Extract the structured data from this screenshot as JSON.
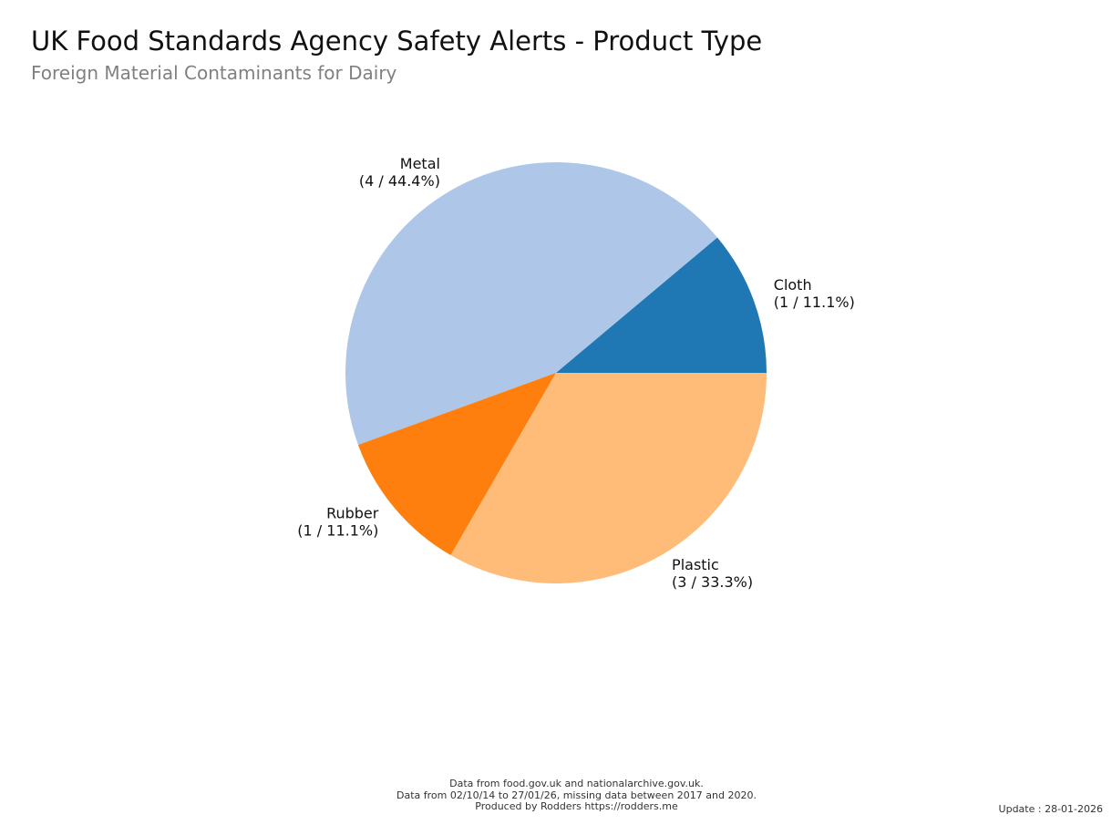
{
  "header": {
    "title": "UK Food Standards Agency Safety Alerts - Product Type",
    "subtitle": "Foreign Material Contaminants for Dairy"
  },
  "chart_data": {
    "type": "pie",
    "title": "UK Food Standards Agency Safety Alerts - Product Type",
    "subtitle": "Foreign Material Contaminants for Dairy",
    "slices": [
      {
        "label": "Cloth",
        "value": 1,
        "percent": 11.1,
        "color": "#1f77b4",
        "display": "(1 / 11.1%)"
      },
      {
        "label": "Metal",
        "value": 4,
        "percent": 44.4,
        "color": "#aec7e8",
        "display": "(4 / 44.4%)"
      },
      {
        "label": "Rubber",
        "value": 1,
        "percent": 11.1,
        "color": "#ff7f0e",
        "display": "(1 / 11.1%)"
      },
      {
        "label": "Plastic",
        "value": 3,
        "percent": 33.3,
        "color": "#ffbb78",
        "display": "(3 / 33.3%)"
      }
    ],
    "start_angle": "0 degrees (east)",
    "direction": "counterclockwise"
  },
  "footer": {
    "line1": "Data from food.gov.uk and nationalarchive.gov.uk.",
    "line2": "Data from 02/10/14 to 27/01/26, missing data between 2017 and 2020.",
    "line3": "Produced by Rodders https://rodders.me",
    "update": "Update : 28-01-2026"
  }
}
